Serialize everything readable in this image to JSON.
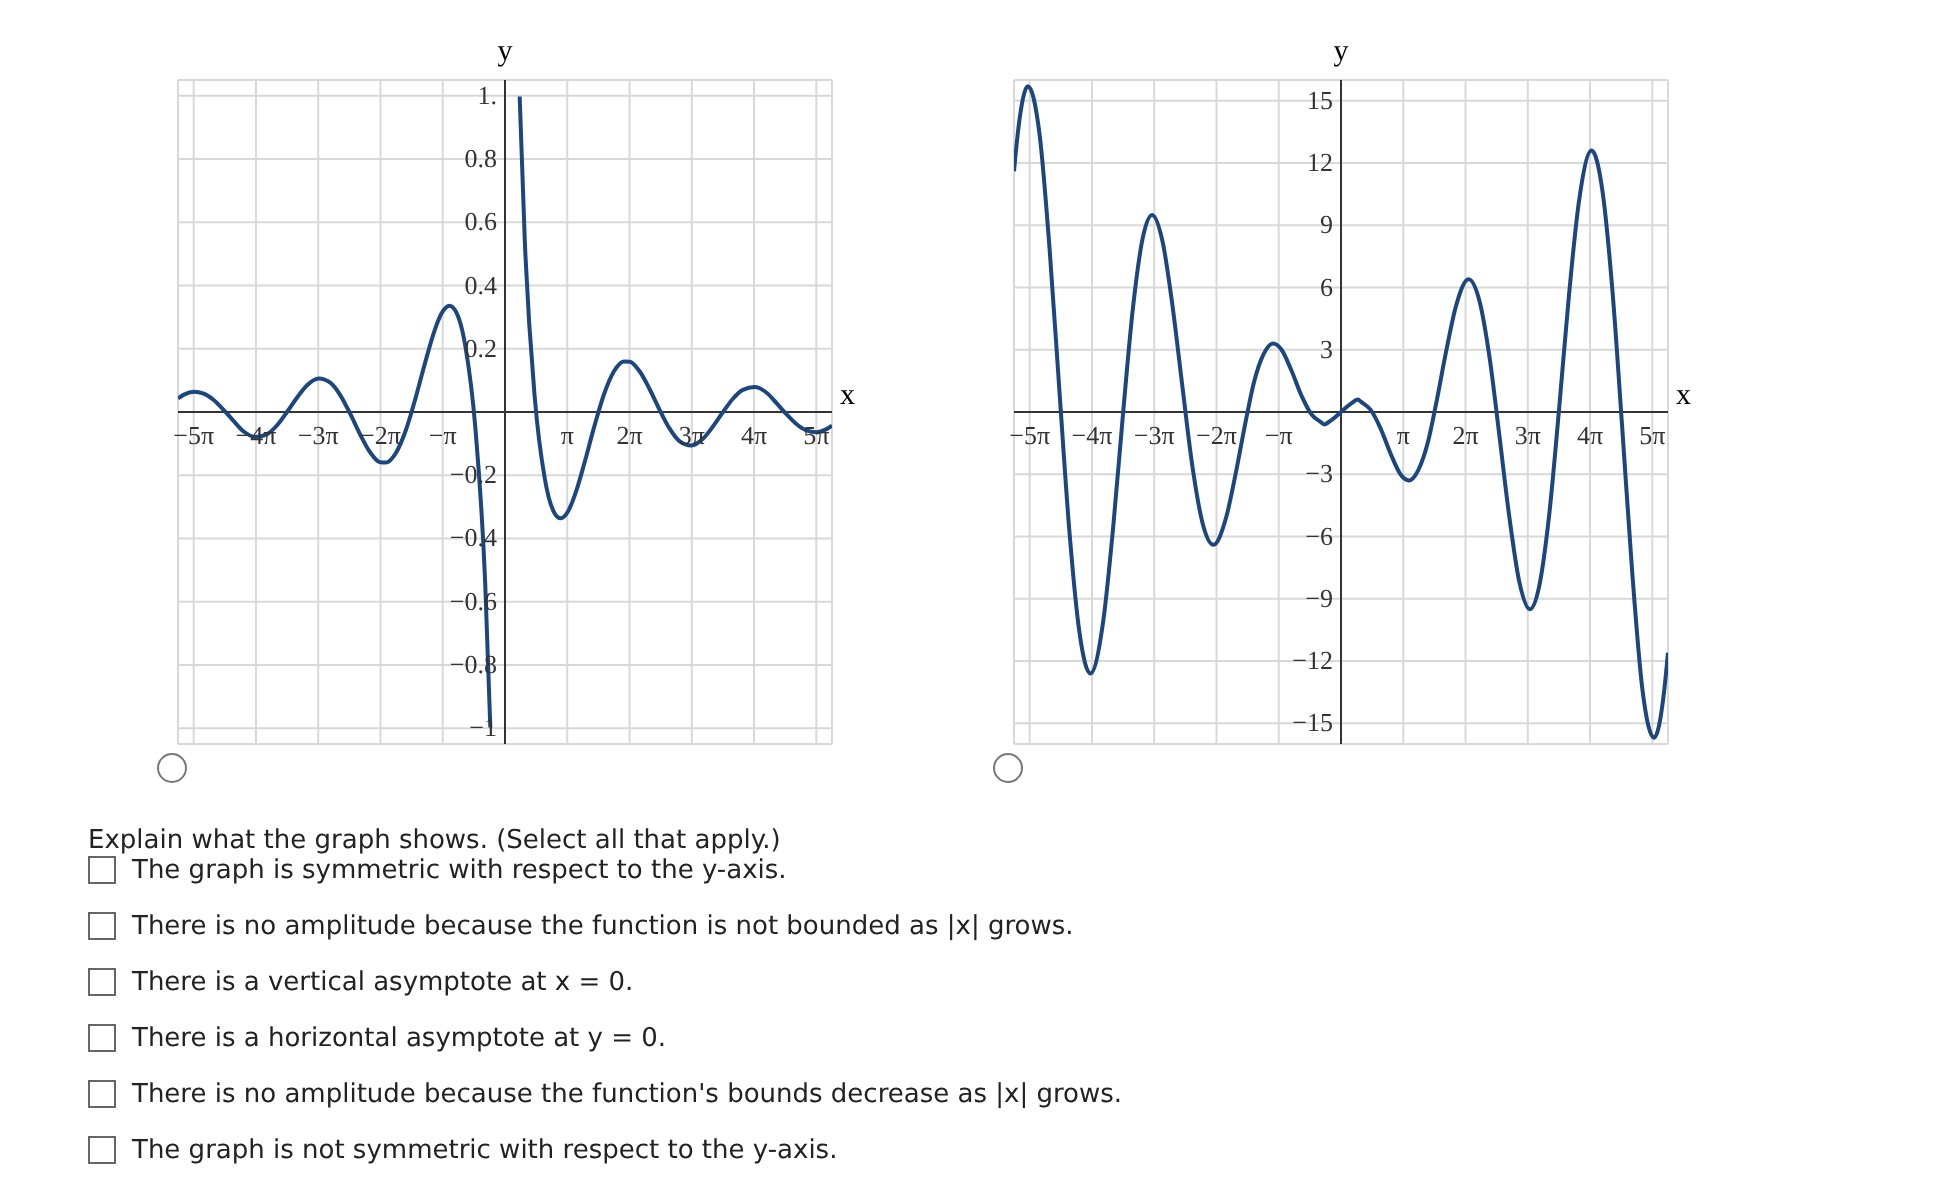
{
  "chart_data": [
    {
      "type": "line",
      "xlabel": "x",
      "ylabel": "y",
      "xlim": [
        -16.5,
        16.5
      ],
      "ylim": [
        -1.05,
        1.05
      ],
      "grid": true,
      "xticks": [
        {
          "value": -15.708,
          "label": "−5π"
        },
        {
          "value": -12.566,
          "label": "−4π"
        },
        {
          "value": -9.425,
          "label": "−3π"
        },
        {
          "value": -6.283,
          "label": "−2π"
        },
        {
          "value": -3.142,
          "label": "−π"
        },
        {
          "value": 3.142,
          "label": "π"
        },
        {
          "value": 6.283,
          "label": "2π"
        },
        {
          "value": 9.425,
          "label": "3π"
        },
        {
          "value": 12.566,
          "label": "4π"
        },
        {
          "value": 15.708,
          "label": "5π"
        }
      ],
      "yticks": [
        {
          "value": 1,
          "label": "1."
        },
        0.8,
        0.6,
        0.4,
        0.2,
        {
          "value": -0.2,
          "label": "−0.2"
        },
        {
          "value": -0.4,
          "label": "−0.4"
        },
        {
          "value": -0.6,
          "label": "−0.6"
        },
        {
          "value": -0.8,
          "label": "−0.8"
        },
        {
          "value": -1,
          "label": "−1"
        }
      ],
      "series": [
        {
          "color": "#1c467f",
          "x": [
            -16.5,
            -16.2,
            -15.7,
            -15.2,
            -14.7,
            -14.2,
            -13.7,
            -13.2,
            -12.6,
            -12.0,
            -11.5,
            -11.0,
            -10.5,
            -10.0,
            -9.4,
            -8.8,
            -8.3,
            -7.8,
            -7.3,
            -6.8,
            -6.3,
            -6.0,
            -5.5,
            -5.0,
            -4.5,
            -4.0,
            -3.6,
            -3.2,
            -2.8,
            -2.5,
            -2.0,
            -1.5,
            -1.0,
            -0.74,
            0,
            0.74,
            1.0,
            1.5,
            2.0,
            2.5,
            2.8,
            3.2,
            3.6,
            4.0,
            4.5,
            5.0,
            5.5,
            6.0,
            6.3,
            6.8,
            7.3,
            7.8,
            8.3,
            8.8,
            9.4,
            10.0,
            10.5,
            11.0,
            11.5,
            12.0,
            12.6,
            13.2,
            13.7,
            14.2,
            14.7,
            15.2,
            15.7,
            16.2,
            16.5
          ],
          "values": [
            0.043,
            0.055,
            0.064,
            0.058,
            0.038,
            0.007,
            -0.028,
            -0.061,
            -0.079,
            -0.07,
            -0.042,
            0.0,
            0.045,
            0.084,
            0.106,
            0.092,
            0.052,
            -0.007,
            -0.072,
            -0.128,
            -0.159,
            -0.16,
            -0.129,
            -0.057,
            0.047,
            0.163,
            0.249,
            0.312,
            0.336,
            0.32,
            0.208,
            -0.047,
            -0.54,
            -0.998,
            null,
            0.998,
            0.54,
            0.047,
            -0.208,
            -0.32,
            -0.336,
            -0.312,
            -0.249,
            -0.163,
            -0.047,
            0.057,
            0.129,
            0.16,
            0.159,
            0.128,
            0.072,
            0.007,
            -0.052,
            -0.092,
            -0.106,
            -0.084,
            -0.045,
            0.0,
            0.042,
            0.07,
            0.079,
            0.061,
            0.028,
            -0.007,
            -0.038,
            -0.058,
            -0.064,
            -0.055,
            -0.043
          ]
        }
      ]
    },
    {
      "type": "line",
      "xlabel": "x",
      "ylabel": "y",
      "xlim": [
        -16.5,
        16.5
      ],
      "ylim": [
        -16,
        16
      ],
      "grid": true,
      "xticks": [
        {
          "value": -15.708,
          "label": "−5π"
        },
        {
          "value": -12.566,
          "label": "−4π"
        },
        {
          "value": -9.425,
          "label": "−3π"
        },
        {
          "value": -6.283,
          "label": "−2π"
        },
        {
          "value": -3.142,
          "label": "−π"
        },
        {
          "value": 3.142,
          "label": "π"
        },
        {
          "value": 6.283,
          "label": "2π"
        },
        {
          "value": 9.425,
          "label": "3π"
        },
        {
          "value": 12.566,
          "label": "4π"
        },
        {
          "value": 15.708,
          "label": "5π"
        }
      ],
      "yticks": [
        15,
        12,
        9,
        6,
        3,
        {
          "value": -3,
          "label": "−3"
        },
        {
          "value": -6,
          "label": "−6"
        },
        {
          "value": -9,
          "label": "−9"
        },
        {
          "value": -12,
          "label": "−12"
        },
        {
          "value": -15,
          "label": "−15"
        }
      ],
      "series": [
        {
          "color": "#1c467f",
          "x": [
            -16.5,
            -16.3,
            -15.8,
            -15.2,
            -14.7,
            -14.2,
            -13.7,
            -13.2,
            -12.645,
            -12.0,
            -11.5,
            -11.0,
            -10.5,
            -10.0,
            -9.53,
            -9.0,
            -8.5,
            -8.0,
            -7.5,
            -7.0,
            -6.44,
            -5.8,
            -5.3,
            -4.8,
            -4.4,
            -3.9,
            -3.43,
            -3.0,
            -2.5,
            -2.0,
            -1.5,
            -1.0,
            -0.86,
            -0.5,
            0,
            0.5,
            0.86,
            1.0,
            1.5,
            2.0,
            2.5,
            3.0,
            3.43,
            3.9,
            4.4,
            4.8,
            5.3,
            5.8,
            6.44,
            7.0,
            7.5,
            8.0,
            8.5,
            9.0,
            9.53,
            10.0,
            10.5,
            11.0,
            11.5,
            12.0,
            12.645,
            13.2,
            13.7,
            14.2,
            14.7,
            15.2,
            15.8,
            16.3,
            16.5
          ],
          "values": [
            11.6,
            13.5,
            15.7,
            13.3,
            7.8,
            0.9,
            -5.8,
            -10.6,
            -12.6,
            -10.1,
            -5.6,
            -0.1,
            5.0,
            8.4,
            9.5,
            8.2,
            5.1,
            1.2,
            -2.6,
            -5.3,
            -6.4,
            -5.1,
            -2.9,
            -0.4,
            1.4,
            2.8,
            3.3,
            3.0,
            2.0,
            0.8,
            -0.1,
            -0.5,
            -0.6,
            -0.4,
            0,
            0.4,
            0.6,
            0.5,
            0.1,
            -0.8,
            -2.0,
            -3.0,
            -3.3,
            -2.8,
            -1.4,
            0.4,
            2.9,
            5.1,
            6.4,
            5.3,
            2.6,
            -1.2,
            -5.1,
            -8.2,
            -9.5,
            -8.4,
            -5.0,
            0.1,
            5.6,
            10.1,
            12.6,
            10.6,
            5.8,
            -0.9,
            -7.8,
            -13.3,
            -15.7,
            -13.5,
            -11.6
          ]
        }
      ]
    },
    {
      "type": "other",
      "title": "Explain what the graph shows. (Select all that apply.)",
      "annotations": [
        "The graph is symmetric with respect to the y-axis.",
        "There is no amplitude because the function is not bounded as |x| grows.",
        "There is a vertical asymptote at x = 0.",
        "There is a horizontal asymptote at y = 0.",
        "There is no amplitude because the function's bounds decrease as |x| grows.",
        "The graph is not symmetric with respect to the y-axis."
      ]
    }
  ]
}
